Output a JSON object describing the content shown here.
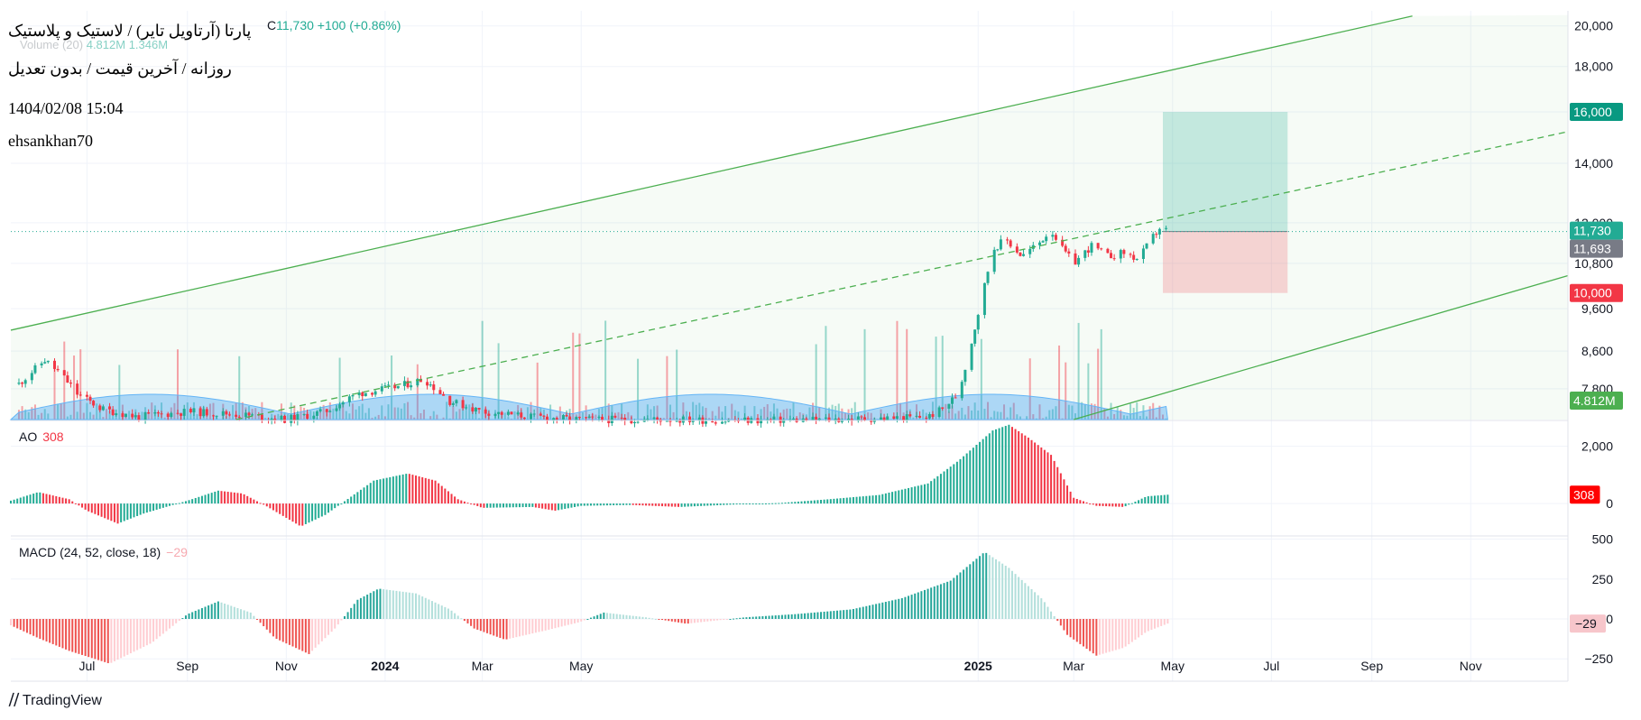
{
  "header": {
    "title": "پارتا (آرتاویل تایر) / لاستیک و پلاستیک",
    "subtitle": "روزانه / آخرین قیمت / بدون تعدیل",
    "datetime": "1404/02/08 15:04",
    "username": "ehsankhan70",
    "close_label": "C",
    "close_value": "11,730",
    "change": "+100 (+0.86%)",
    "volume_label": "Volume (20)",
    "volume_values": "4.812M  1.346M"
  },
  "branding": {
    "logo_text": "TradingView"
  },
  "colors": {
    "up": "#22ab94",
    "down": "#f23645",
    "channel": "#4caf50",
    "volume_ma": "#64b5f6",
    "axis_text": "#131722",
    "grid": "#f0f3fa"
  },
  "chart_data": [
    {
      "type": "candlestick",
      "pane": "price",
      "title": "پارتا (آرتاویل تایر) / لاستیک و پلاستیک",
      "y_axis": {
        "scale": "log",
        "ticks": [
          "20,000",
          "18,000",
          "16,000",
          "14,000",
          "12,000",
          "10,800",
          "9,600",
          "8,600",
          "7,800"
        ]
      },
      "x_axis": {
        "ticks": [
          "Jul",
          "Sep",
          "Nov",
          "2024",
          "Mar",
          "May",
          "2025",
          "Mar",
          "May",
          "Jul",
          "Sep",
          "Nov"
        ]
      },
      "last_price": 11730,
      "price_labels": [
        {
          "text": "16,000",
          "value": 16000,
          "color": "#089981"
        },
        {
          "text": "11,730",
          "value": 11730,
          "color": "#22ab94"
        },
        {
          "text": "11,693",
          "value": 11693,
          "color": "#787b86"
        },
        {
          "text": "10,000",
          "value": 10000,
          "color": "#f23645"
        }
      ],
      "trade_box": {
        "entry": 11730,
        "target": 16000,
        "stop": 10000,
        "start": "2025-04-25",
        "end": "2025-07-11"
      },
      "channel": {
        "upper": [
          [
            "2023-05-15",
            9080
          ],
          [
            "2025-09-26",
            20520
          ]
        ],
        "middle": [
          [
            "2023-10-01",
            7200
          ],
          [
            "2025-12-31",
            15200
          ]
        ],
        "lower": [
          [
            "2025-03-01",
            7200
          ],
          [
            "2025-12-31",
            10460
          ]
        ]
      },
      "series": [
        {
          "name": "Price",
          "points": [
            [
              "2023-05-20",
              7900
            ],
            [
              "2023-06-05",
              8400
            ],
            [
              "2023-06-15",
              8100
            ],
            [
              "2023-06-25",
              7700
            ],
            [
              "2023-07-10",
              7400
            ],
            [
              "2023-08-01",
              7250
            ],
            [
              "2023-09-01",
              7350
            ],
            [
              "2023-10-01",
              7300
            ],
            [
              "2023-11-01",
              7200
            ],
            [
              "2023-11-25",
              7350
            ],
            [
              "2023-12-15",
              7700
            ],
            [
              "2024-01-10",
              7850
            ],
            [
              "2024-01-25",
              8000
            ],
            [
              "2024-02-10",
              7550
            ],
            [
              "2024-03-01",
              7350
            ],
            [
              "2024-04-01",
              7250
            ],
            [
              "2024-05-01",
              7200
            ],
            [
              "2024-06-01",
              7200
            ],
            [
              "2024-07-01",
              7200
            ],
            [
              "2024-08-01",
              7180
            ],
            [
              "2024-09-01",
              7190
            ],
            [
              "2024-10-01",
              7200
            ],
            [
              "2024-11-01",
              7220
            ],
            [
              "2024-12-01",
              7250
            ],
            [
              "2024-12-10",
              7400
            ],
            [
              "2024-12-20",
              7700
            ],
            [
              "2024-12-28",
              8800
            ],
            [
              "2025-01-05",
              10200
            ],
            [
              "2025-01-10",
              11200
            ],
            [
              "2025-01-18",
              11500
            ],
            [
              "2025-01-28",
              11000
            ],
            [
              "2025-02-08",
              11400
            ],
            [
              "2025-02-15",
              11800
            ],
            [
              "2025-02-22",
              11200
            ],
            [
              "2025-03-01",
              10800
            ],
            [
              "2025-03-12",
              11300
            ],
            [
              "2025-03-22",
              11000
            ],
            [
              "2025-04-01",
              11100
            ],
            [
              "2025-04-10",
              10900
            ],
            [
              "2025-04-18",
              11500
            ],
            [
              "2025-04-24",
              11900
            ],
            [
              "2025-04-28",
              11730
            ]
          ]
        }
      ]
    },
    {
      "type": "bar",
      "pane": "volume",
      "title": "Volume (20)",
      "values_label": [
        "4.812M",
        "1.346M"
      ],
      "axis_labels": [
        "4.812M"
      ]
    },
    {
      "type": "bar",
      "pane": "ao",
      "title": "AO",
      "last_value": "308",
      "y_axis": {
        "ticks": [
          "2,000",
          "0"
        ]
      },
      "series": [
        {
          "name": "AO",
          "points": [
            [
              "2023-05-15",
              100
            ],
            [
              "2023-06-01",
              400
            ],
            [
              "2023-06-20",
              150
            ],
            [
              "2023-07-01",
              -250
            ],
            [
              "2023-07-20",
              -700
            ],
            [
              "2023-08-05",
              -350
            ],
            [
              "2023-09-01",
              100
            ],
            [
              "2023-09-20",
              450
            ],
            [
              "2023-10-05",
              350
            ],
            [
              "2023-10-20",
              -100
            ],
            [
              "2023-11-10",
              -800
            ],
            [
              "2023-11-25",
              -400
            ],
            [
              "2023-12-10",
              200
            ],
            [
              "2023-12-25",
              800
            ],
            [
              "2024-01-15",
              1050
            ],
            [
              "2024-02-01",
              800
            ],
            [
              "2024-02-15",
              150
            ],
            [
              "2024-03-01",
              -150
            ],
            [
              "2024-04-01",
              -120
            ],
            [
              "2024-04-15",
              -250
            ],
            [
              "2024-05-01",
              -80
            ],
            [
              "2024-06-01",
              -50
            ],
            [
              "2024-07-01",
              -120
            ],
            [
              "2024-08-01",
              -40
            ],
            [
              "2024-09-01",
              20
            ],
            [
              "2024-10-01",
              150
            ],
            [
              "2024-11-01",
              300
            ],
            [
              "2024-12-01",
              700
            ],
            [
              "2024-12-20",
              1500
            ],
            [
              "2025-01-10",
              2550
            ],
            [
              "2025-01-20",
              2750
            ],
            [
              "2025-02-01",
              2300
            ],
            [
              "2025-02-15",
              1700
            ],
            [
              "2025-03-01",
              200
            ],
            [
              "2025-03-15",
              -80
            ],
            [
              "2025-04-01",
              -120
            ],
            [
              "2025-04-15",
              250
            ],
            [
              "2025-04-28",
              308
            ]
          ]
        }
      ]
    },
    {
      "type": "bar",
      "pane": "macd",
      "title": "MACD (24, 52, close, 18)",
      "last_value": "−29",
      "y_axis": {
        "ticks": [
          "500",
          "250",
          "0",
          "−250"
        ]
      },
      "series": [
        {
          "name": "Histogram",
          "points": [
            [
              "2023-05-15",
              -40
            ],
            [
              "2023-06-01",
              -120
            ],
            [
              "2023-06-20",
              -200
            ],
            [
              "2023-07-15",
              -280
            ],
            [
              "2023-08-10",
              -150
            ],
            [
              "2023-09-01",
              30
            ],
            [
              "2023-09-20",
              110
            ],
            [
              "2023-10-10",
              40
            ],
            [
              "2023-10-25",
              -120
            ],
            [
              "2023-11-15",
              -220
            ],
            [
              "2023-12-01",
              -60
            ],
            [
              "2023-12-15",
              120
            ],
            [
              "2023-12-28",
              190
            ],
            [
              "2024-01-20",
              160
            ],
            [
              "2024-02-10",
              60
            ],
            [
              "2024-02-25",
              -60
            ],
            [
              "2024-03-15",
              -130
            ],
            [
              "2024-04-10",
              -70
            ],
            [
              "2024-04-30",
              -20
            ],
            [
              "2024-05-15",
              40
            ],
            [
              "2024-06-10",
              10
            ],
            [
              "2024-07-05",
              -30
            ],
            [
              "2024-08-10",
              10
            ],
            [
              "2024-09-10",
              30
            ],
            [
              "2024-10-15",
              60
            ],
            [
              "2024-11-15",
              130
            ],
            [
              "2024-12-15",
              240
            ],
            [
              "2025-01-05",
              420
            ],
            [
              "2025-01-20",
              320
            ],
            [
              "2025-02-10",
              120
            ],
            [
              "2025-02-25",
              -100
            ],
            [
              "2025-03-15",
              -230
            ],
            [
              "2025-04-01",
              -180
            ],
            [
              "2025-04-15",
              -80
            ],
            [
              "2025-04-28",
              -29
            ]
          ]
        }
      ]
    }
  ]
}
